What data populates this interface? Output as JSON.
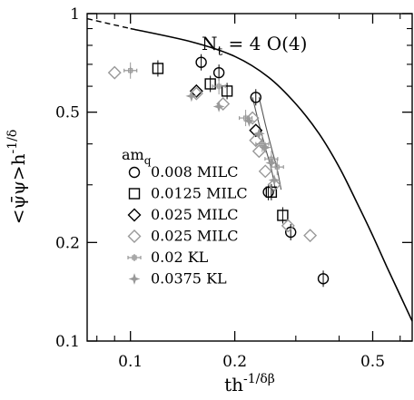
{
  "chart_data": {
    "type": "scatter",
    "x_scale": "log",
    "y_scale": "log",
    "xlim": [
      0.075,
      0.65
    ],
    "ylim": [
      0.1,
      1.0
    ],
    "x_ticks": [
      {
        "value": 0.1,
        "label": "0.1"
      },
      {
        "value": 0.2,
        "label": "0.2"
      },
      {
        "value": 0.5,
        "label": "0.5"
      }
    ],
    "y_ticks": [
      {
        "value": 0.1,
        "label": "0.1"
      },
      {
        "value": 0.2,
        "label": "0.2"
      },
      {
        "value": 0.5,
        "label": "0.5"
      },
      {
        "value": 1.0,
        "label": "1"
      }
    ],
    "xlabel": {
      "base": "th",
      "sup": "-1/δβ"
    },
    "ylabel": {
      "main": "<ψ̄ψ>h",
      "sup": "-1/δ"
    },
    "annotation": {
      "pre": "N",
      "sub": "t",
      "post": " = 4   O(4)"
    },
    "legend": {
      "title": {
        "pre": "am",
        "sub": "q"
      },
      "entries": [
        {
          "label": "0.008 MILC",
          "marker": "circle",
          "color": "#000000"
        },
        {
          "label": "0.0125 MILC",
          "marker": "square",
          "color": "#000000"
        },
        {
          "label": "0.025 MILC",
          "marker": "diamond",
          "color": "#000000"
        },
        {
          "label": "0.025 MILC",
          "marker": "diamond",
          "color": "#999999"
        },
        {
          "label": "0.02 KL",
          "marker": "plus-square",
          "color": "#999999"
        },
        {
          "label": "0.0375 KL",
          "marker": "star",
          "color": "#999999"
        }
      ]
    },
    "scaling_function": {
      "dashed": [
        [
          0.075,
          0.965
        ],
        [
          0.1,
          0.9
        ]
      ],
      "solid": [
        [
          0.1,
          0.9
        ],
        [
          0.15,
          0.82
        ],
        [
          0.2,
          0.74
        ],
        [
          0.25,
          0.64
        ],
        [
          0.3,
          0.53
        ],
        [
          0.35,
          0.43
        ],
        [
          0.4,
          0.34
        ],
        [
          0.45,
          0.265
        ],
        [
          0.5,
          0.21
        ],
        [
          0.55,
          0.168
        ],
        [
          0.6,
          0.138
        ],
        [
          0.65,
          0.115
        ]
      ]
    },
    "series": [
      {
        "marker": "circle",
        "color": "#000000",
        "points": [
          [
            0.16,
            0.71
          ],
          [
            0.18,
            0.66
          ],
          [
            0.23,
            0.555
          ],
          [
            0.25,
            0.285
          ],
          [
            0.29,
            0.215
          ],
          [
            0.36,
            0.155
          ]
        ]
      },
      {
        "marker": "square",
        "color": "#000000",
        "points": [
          [
            0.12,
            0.68
          ],
          [
            0.17,
            0.61
          ],
          [
            0.19,
            0.58
          ],
          [
            0.255,
            0.285
          ],
          [
            0.275,
            0.242
          ]
        ]
      },
      {
        "marker": "diamond",
        "color": "#000000",
        "points": [
          [
            0.155,
            0.58
          ],
          [
            0.23,
            0.44
          ]
        ]
      },
      {
        "marker": "diamond",
        "color": "#999999",
        "points": [
          [
            0.09,
            0.66
          ],
          [
            0.155,
            0.57
          ],
          [
            0.185,
            0.53
          ],
          [
            0.225,
            0.48
          ],
          [
            0.23,
            0.41
          ],
          [
            0.235,
            0.38
          ],
          [
            0.245,
            0.33
          ],
          [
            0.26,
            0.3
          ],
          [
            0.285,
            0.225
          ],
          [
            0.33,
            0.21
          ]
        ]
      },
      {
        "marker": "plus-square",
        "color": "#999999",
        "points": [
          [
            0.1,
            0.67
          ],
          [
            0.18,
            0.6
          ],
          [
            0.215,
            0.48
          ],
          [
            0.24,
            0.4
          ],
          [
            0.255,
            0.36
          ],
          [
            0.265,
            0.34
          ]
        ]
      },
      {
        "marker": "star",
        "color": "#999999",
        "points": [
          [
            0.15,
            0.56
          ],
          [
            0.18,
            0.52
          ],
          [
            0.22,
            0.47
          ],
          [
            0.235,
            0.43
          ],
          [
            0.245,
            0.39
          ],
          [
            0.255,
            0.35
          ],
          [
            0.26,
            0.31
          ]
        ]
      }
    ],
    "fit_curves": [
      [
        [
          0.225,
          0.555
        ],
        [
          0.235,
          0.46
        ],
        [
          0.245,
          0.39
        ],
        [
          0.255,
          0.335
        ],
        [
          0.262,
          0.29
        ]
      ],
      [
        [
          0.235,
          0.555
        ],
        [
          0.245,
          0.46
        ],
        [
          0.255,
          0.39
        ],
        [
          0.265,
          0.335
        ],
        [
          0.272,
          0.29
        ]
      ]
    ],
    "colors": {
      "axis": "#000000",
      "marker_dark": "#000000",
      "marker_gray": "#999999",
      "legend_gray_text": "#999999"
    }
  }
}
